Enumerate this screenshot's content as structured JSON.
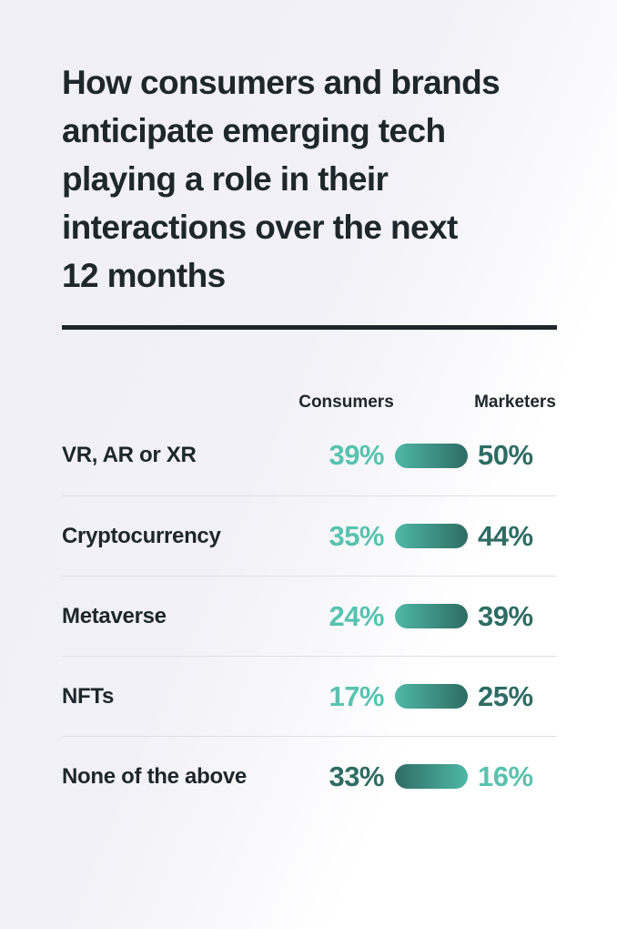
{
  "header": {
    "title_lines": [
      "How consumers and brands",
      "anticipate emerging tech",
      "playing a role in their",
      "interactions over the next",
      "12 months"
    ]
  },
  "columns": {
    "consumers": "Consumers",
    "marketers": "Marketers"
  },
  "rows": [
    {
      "label": "VR, AR or XR",
      "consumers": "39%",
      "marketers": "50%",
      "emphasis": "marketers"
    },
    {
      "label": "Cryptocurrency",
      "consumers": "35%",
      "marketers": "44%",
      "emphasis": "marketers"
    },
    {
      "label": "Metaverse",
      "consumers": "24%",
      "marketers": "39%",
      "emphasis": "marketers"
    },
    {
      "label": "NFTs",
      "consumers": "17%",
      "marketers": "25%",
      "emphasis": "marketers"
    },
    {
      "label": "None of the above",
      "consumers": "33%",
      "marketers": "16%",
      "emphasis": "consumers"
    }
  ],
  "colors": {
    "ink": "#1e272b",
    "teal_light": "#57c3af",
    "teal_dark": "#2e6c64",
    "pill_light": "#4fb8a6",
    "divider": "#dfdfe5",
    "bg_start": "#f0f0f6",
    "bg_end": "#ffffff"
  },
  "chart_data": {
    "type": "table",
    "title": "How consumers and brands anticipate emerging tech playing a role in their interactions over the next 12 months",
    "categories": [
      "VR, AR or XR",
      "Cryptocurrency",
      "Metaverse",
      "NFTs",
      "None of the above"
    ],
    "series": [
      {
        "name": "Consumers",
        "values": [
          39,
          35,
          24,
          17,
          33
        ]
      },
      {
        "name": "Marketers",
        "values": [
          50,
          44,
          39,
          25,
          16
        ]
      }
    ],
    "unit": "%",
    "legend_position": "top",
    "grid": false,
    "note": "Higher value in each row shown in dark teal; gradient pill points from lighter (lower) toward darker (higher) value"
  }
}
